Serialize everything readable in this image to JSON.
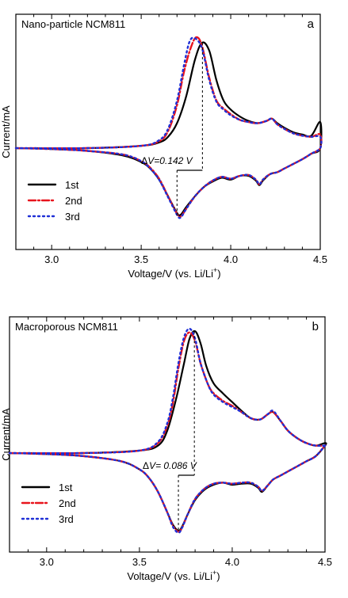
{
  "chart_data": [
    {
      "type": "line",
      "panel_letter": "a",
      "title": "Nano-particle  NCM811",
      "xlabel": "Voltage/V (vs. Li/Li",
      "xlabel_sup": "+",
      "xlabel_end": ")",
      "ylabel": "Current/mA",
      "xlim": [
        2.8,
        4.5
      ],
      "ylim": [
        -1.0,
        1.0
      ],
      "xticks": [
        3.0,
        3.5,
        4.0,
        4.5
      ],
      "xtick_labels": [
        "3.0",
        "3.5",
        "4.0",
        "4.5"
      ],
      "y_ticks_labeled": false,
      "legend_position": "lower-left",
      "annotation": {
        "delta": "Δ",
        "text": "V=0.142 V",
        "x_from": 3.7,
        "x_to": 3.842
      },
      "series": [
        {
          "name": "1st",
          "color": "#000000",
          "style": "solid",
          "ox": [
            2.8,
            3.2,
            3.5,
            3.6,
            3.65,
            3.7,
            3.75,
            3.8,
            3.84,
            3.88,
            3.92,
            3.96,
            4.0,
            4.05,
            4.1,
            4.15,
            4.2,
            4.23,
            4.26,
            4.3,
            4.35,
            4.4,
            4.45,
            4.5
          ],
          "oy": [
            0.0,
            0.0,
            0.02,
            0.05,
            0.1,
            0.22,
            0.45,
            0.78,
            0.93,
            0.86,
            0.6,
            0.42,
            0.34,
            0.28,
            0.24,
            0.22,
            0.24,
            0.26,
            0.22,
            0.18,
            0.14,
            0.12,
            0.11,
            0.23
          ],
          "rx": [
            4.5,
            4.45,
            4.4,
            4.35,
            4.3,
            4.26,
            4.22,
            4.18,
            4.16,
            4.14,
            4.1,
            4.05,
            4.0,
            3.95,
            3.9,
            3.85,
            3.8,
            3.75,
            3.72,
            3.7,
            3.65,
            3.6,
            3.55,
            3.5,
            3.4,
            3.2,
            3.0,
            2.8
          ],
          "ry": [
            0.0,
            -0.06,
            -0.12,
            -0.17,
            -0.22,
            -0.26,
            -0.28,
            -0.35,
            -0.4,
            -0.35,
            -0.3,
            -0.3,
            -0.34,
            -0.32,
            -0.36,
            -0.42,
            -0.52,
            -0.64,
            -0.72,
            -0.7,
            -0.52,
            -0.34,
            -0.22,
            -0.15,
            -0.08,
            -0.03,
            -0.01,
            0.0
          ]
        },
        {
          "name": "2nd",
          "color": "#e8141d",
          "style": "dashdot",
          "ox": [
            2.8,
            3.2,
            3.5,
            3.6,
            3.65,
            3.7,
            3.74,
            3.78,
            3.81,
            3.84,
            3.88,
            3.92,
            3.96,
            4.0,
            4.05,
            4.1,
            4.15,
            4.2,
            4.23,
            4.26,
            4.3,
            4.35,
            4.4,
            4.45,
            4.5
          ],
          "oy": [
            0.0,
            0.0,
            0.02,
            0.06,
            0.15,
            0.38,
            0.68,
            0.9,
            0.98,
            0.9,
            0.62,
            0.42,
            0.35,
            0.3,
            0.25,
            0.23,
            0.22,
            0.24,
            0.26,
            0.21,
            0.17,
            0.13,
            0.11,
            0.1,
            0.12
          ],
          "rx": [
            4.5,
            4.45,
            4.4,
            4.35,
            4.3,
            4.26,
            4.22,
            4.18,
            4.16,
            4.14,
            4.1,
            4.05,
            4.0,
            3.95,
            3.9,
            3.85,
            3.8,
            3.75,
            3.72,
            3.7,
            3.65,
            3.6,
            3.55,
            3.5,
            3.4,
            3.2,
            3.0,
            2.8
          ],
          "ry": [
            0.0,
            -0.06,
            -0.12,
            -0.17,
            -0.22,
            -0.26,
            -0.28,
            -0.34,
            -0.39,
            -0.34,
            -0.29,
            -0.3,
            -0.33,
            -0.31,
            -0.35,
            -0.42,
            -0.52,
            -0.66,
            -0.74,
            -0.71,
            -0.52,
            -0.33,
            -0.21,
            -0.14,
            -0.07,
            -0.03,
            -0.01,
            0.0
          ]
        },
        {
          "name": "3rd",
          "color": "#1f2fd6",
          "style": "dotted",
          "ox": [
            2.8,
            3.2,
            3.5,
            3.6,
            3.65,
            3.7,
            3.74,
            3.77,
            3.8,
            3.84,
            3.88,
            3.92,
            3.96,
            4.0,
            4.05,
            4.1,
            4.15,
            4.2,
            4.23,
            4.26,
            4.3,
            4.35,
            4.4,
            4.45,
            4.5
          ],
          "oy": [
            0.0,
            0.0,
            0.02,
            0.07,
            0.17,
            0.42,
            0.74,
            0.94,
            0.97,
            0.88,
            0.6,
            0.41,
            0.34,
            0.29,
            0.25,
            0.23,
            0.22,
            0.24,
            0.26,
            0.21,
            0.17,
            0.13,
            0.11,
            0.1,
            0.1
          ],
          "rx": [
            4.5,
            4.45,
            4.4,
            4.35,
            4.3,
            4.26,
            4.22,
            4.18,
            4.16,
            4.14,
            4.1,
            4.05,
            4.0,
            3.95,
            3.9,
            3.85,
            3.8,
            3.75,
            3.72,
            3.7,
            3.65,
            3.6,
            3.55,
            3.5,
            3.4,
            3.2,
            3.0,
            2.8
          ],
          "ry": [
            0.0,
            -0.06,
            -0.12,
            -0.17,
            -0.22,
            -0.26,
            -0.28,
            -0.34,
            -0.39,
            -0.34,
            -0.29,
            -0.3,
            -0.33,
            -0.31,
            -0.35,
            -0.42,
            -0.52,
            -0.66,
            -0.75,
            -0.72,
            -0.53,
            -0.34,
            -0.22,
            -0.14,
            -0.07,
            -0.03,
            -0.01,
            0.0
          ]
        }
      ]
    },
    {
      "type": "line",
      "panel_letter": "b",
      "title": "Macroporous  NCM811",
      "xlabel": "Voltage/V (vs. Li/Li",
      "xlabel_sup": "+",
      "xlabel_end": ")",
      "ylabel": "Current/mA",
      "xlim": [
        2.8,
        4.5
      ],
      "ylim": [
        -1.0,
        1.0
      ],
      "xticks": [
        3.0,
        3.5,
        4.0,
        4.5
      ],
      "xtick_labels": [
        "3.0",
        "3.5",
        "4.0",
        "4.5"
      ],
      "y_ticks_labeled": false,
      "legend_position": "lower-left",
      "annotation": {
        "delta": "Δ",
        "text": "V= 0.086 V",
        "x_from": 3.71,
        "x_to": 3.796
      },
      "series": [
        {
          "name": "1st",
          "color": "#000000",
          "style": "solid",
          "ox": [
            2.8,
            3.2,
            3.5,
            3.6,
            3.65,
            3.7,
            3.74,
            3.77,
            3.8,
            3.83,
            3.86,
            3.9,
            3.95,
            4.0,
            4.05,
            4.1,
            4.15,
            4.19,
            4.22,
            4.26,
            4.3,
            4.35,
            4.4,
            4.45,
            4.5
          ],
          "oy": [
            0.0,
            0.0,
            0.02,
            0.06,
            0.18,
            0.45,
            0.72,
            0.92,
            0.98,
            0.88,
            0.7,
            0.56,
            0.48,
            0.41,
            0.34,
            0.28,
            0.27,
            0.31,
            0.33,
            0.26,
            0.18,
            0.12,
            0.08,
            0.06,
            0.08
          ],
          "rx": [
            4.5,
            4.45,
            4.4,
            4.35,
            4.3,
            4.26,
            4.22,
            4.19,
            4.16,
            4.14,
            4.1,
            4.05,
            4.0,
            3.95,
            3.9,
            3.85,
            3.8,
            3.76,
            3.73,
            3.71,
            3.68,
            3.65,
            3.6,
            3.55,
            3.5,
            3.4,
            3.2,
            3.0,
            2.8
          ],
          "ry": [
            0.06,
            -0.03,
            -0.08,
            -0.13,
            -0.18,
            -0.22,
            -0.26,
            -0.32,
            -0.38,
            -0.34,
            -0.3,
            -0.3,
            -0.31,
            -0.29,
            -0.31,
            -0.36,
            -0.46,
            -0.6,
            -0.72,
            -0.76,
            -0.7,
            -0.58,
            -0.38,
            -0.24,
            -0.16,
            -0.08,
            -0.03,
            -0.01,
            0.0
          ]
        },
        {
          "name": "2nd",
          "color": "#e8141d",
          "style": "dashdot",
          "ox": [
            2.8,
            3.2,
            3.5,
            3.6,
            3.65,
            3.68,
            3.71,
            3.74,
            3.77,
            3.8,
            3.83,
            3.87,
            3.9,
            3.95,
            4.0,
            4.05,
            4.1,
            4.15,
            4.19,
            4.22,
            4.26,
            4.3,
            4.35,
            4.4,
            4.45,
            4.5
          ],
          "oy": [
            0.0,
            0.0,
            0.02,
            0.08,
            0.22,
            0.4,
            0.68,
            0.9,
            0.97,
            0.9,
            0.72,
            0.55,
            0.48,
            0.42,
            0.38,
            0.33,
            0.28,
            0.27,
            0.31,
            0.33,
            0.26,
            0.18,
            0.12,
            0.08,
            0.06,
            0.06
          ],
          "rx": [
            4.5,
            4.45,
            4.4,
            4.35,
            4.3,
            4.26,
            4.22,
            4.19,
            4.16,
            4.14,
            4.1,
            4.05,
            4.0,
            3.95,
            3.9,
            3.85,
            3.8,
            3.76,
            3.73,
            3.71,
            3.68,
            3.65,
            3.6,
            3.55,
            3.5,
            3.4,
            3.2,
            3.0,
            2.8
          ],
          "ry": [
            0.06,
            -0.03,
            -0.08,
            -0.13,
            -0.18,
            -0.22,
            -0.26,
            -0.32,
            -0.37,
            -0.33,
            -0.29,
            -0.29,
            -0.3,
            -0.29,
            -0.3,
            -0.35,
            -0.45,
            -0.6,
            -0.73,
            -0.77,
            -0.71,
            -0.58,
            -0.38,
            -0.24,
            -0.16,
            -0.08,
            -0.03,
            -0.01,
            0.0
          ]
        },
        {
          "name": "3rd",
          "color": "#1f2fd6",
          "style": "dotted",
          "ox": [
            2.8,
            3.2,
            3.5,
            3.6,
            3.65,
            3.68,
            3.71,
            3.74,
            3.77,
            3.8,
            3.83,
            3.87,
            3.9,
            3.95,
            4.0,
            4.05,
            4.1,
            4.15,
            4.19,
            4.22,
            4.26,
            4.3,
            4.35,
            4.4,
            4.45,
            4.5
          ],
          "oy": [
            0.0,
            0.0,
            0.02,
            0.09,
            0.24,
            0.44,
            0.72,
            0.93,
            1.0,
            0.92,
            0.72,
            0.55,
            0.47,
            0.41,
            0.37,
            0.33,
            0.28,
            0.27,
            0.31,
            0.34,
            0.26,
            0.18,
            0.12,
            0.08,
            0.06,
            0.06
          ],
          "rx": [
            4.5,
            4.45,
            4.4,
            4.35,
            4.3,
            4.26,
            4.22,
            4.19,
            4.16,
            4.14,
            4.1,
            4.05,
            4.0,
            3.95,
            3.9,
            3.85,
            3.8,
            3.76,
            3.73,
            3.71,
            3.68,
            3.65,
            3.6,
            3.55,
            3.5,
            3.4,
            3.2,
            3.0,
            2.8
          ],
          "ry": [
            0.06,
            -0.03,
            -0.08,
            -0.13,
            -0.18,
            -0.22,
            -0.26,
            -0.32,
            -0.37,
            -0.33,
            -0.29,
            -0.29,
            -0.3,
            -0.29,
            -0.3,
            -0.35,
            -0.45,
            -0.6,
            -0.73,
            -0.78,
            -0.72,
            -0.58,
            -0.38,
            -0.24,
            -0.16,
            -0.08,
            -0.03,
            -0.01,
            0.0
          ]
        }
      ]
    }
  ]
}
